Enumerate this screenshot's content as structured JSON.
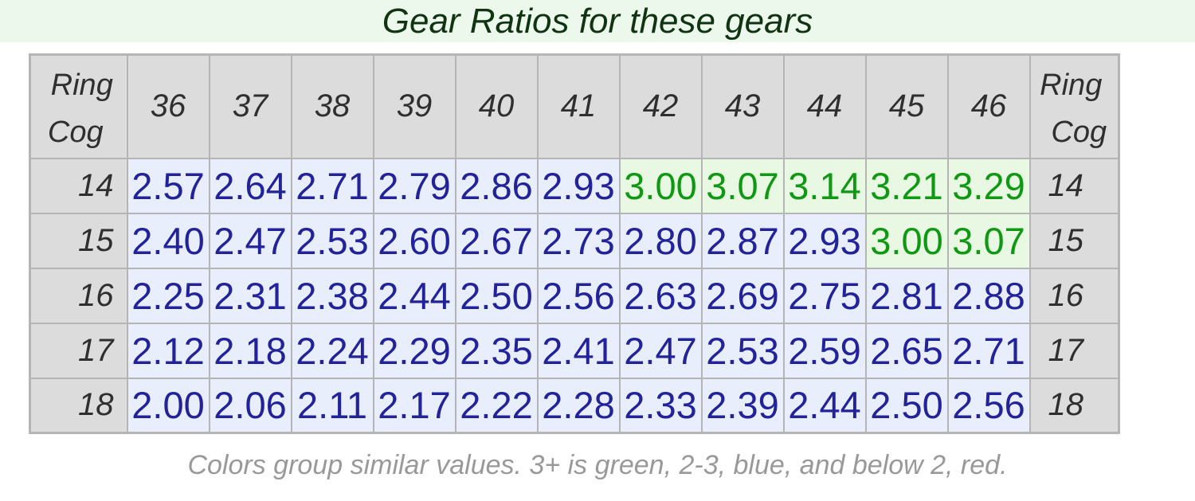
{
  "title": "Gear Ratios for these gears",
  "caption": "Colors group similar values. 3+ is green, 2-3, blue, and below 2, red.",
  "colors": {
    "title_bg": "#edf8ed",
    "title_text": "#103311",
    "header_bg": "#dcdcdc",
    "header_text": "#2f2f2f",
    "border": "#b5b5b5",
    "blue_text": "#22229b",
    "blue_bg": "#e8eefb",
    "green_text": "#0f9812",
    "green_bg": "#e8f8e3",
    "caption_text": "#999999"
  },
  "chart_data": {
    "type": "table",
    "title": "Gear Ratios for these gears",
    "caption": "Colors group similar values. 3+ is green, 2-3, blue, and below 2, red.",
    "corner_label_top": "Ring",
    "corner_label_bottom": "Cog",
    "columns_rings": [
      "36",
      "37",
      "38",
      "39",
      "40",
      "41",
      "42",
      "43",
      "44",
      "45",
      "46"
    ],
    "rows": [
      {
        "cog": "14",
        "values": [
          "2.57",
          "2.64",
          "2.71",
          "2.79",
          "2.86",
          "2.93",
          "3.00",
          "3.07",
          "3.14",
          "3.21",
          "3.29"
        ]
      },
      {
        "cog": "15",
        "values": [
          "2.40",
          "2.47",
          "2.53",
          "2.60",
          "2.67",
          "2.73",
          "2.80",
          "2.87",
          "2.93",
          "3.00",
          "3.07"
        ]
      },
      {
        "cog": "16",
        "values": [
          "2.25",
          "2.31",
          "2.38",
          "2.44",
          "2.50",
          "2.56",
          "2.63",
          "2.69",
          "2.75",
          "2.81",
          "2.88"
        ]
      },
      {
        "cog": "17",
        "values": [
          "2.12",
          "2.18",
          "2.24",
          "2.29",
          "2.35",
          "2.41",
          "2.47",
          "2.53",
          "2.59",
          "2.65",
          "2.71"
        ]
      },
      {
        "cog": "18",
        "values": [
          "2.00",
          "2.06",
          "2.11",
          "2.17",
          "2.22",
          "2.28",
          "2.33",
          "2.39",
          "2.44",
          "2.50",
          "2.56"
        ]
      }
    ],
    "color_rule": {
      "green_min": 3,
      "blue_min": 2,
      "red_below": 2
    },
    "legend_position": "caption-below",
    "grid": true
  }
}
